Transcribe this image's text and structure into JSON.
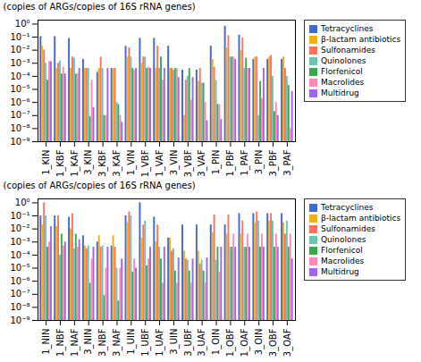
{
  "chart_data": [
    {
      "type": "bar",
      "ylabel": "(copies of ARGs/copies of 16S rRNA genes)",
      "log": "y",
      "ylim": [
        1e-09,
        2.0
      ],
      "yticks": [
        {
          "value": 1e-09,
          "label": "10⁻⁹"
        },
        {
          "value": 1e-08,
          "label": "10⁻⁸"
        },
        {
          "value": 1e-07,
          "label": "10⁻⁷"
        },
        {
          "value": 1e-06,
          "label": "10⁻⁶"
        },
        {
          "value": 1e-05,
          "label": "10⁻⁵"
        },
        {
          "value": 0.0001,
          "label": "10⁻⁴"
        },
        {
          "value": 0.001,
          "label": "10⁻³"
        },
        {
          "value": 0.01,
          "label": "10⁻²"
        },
        {
          "value": 0.1,
          "label": "10⁻¹"
        },
        {
          "value": 1.0,
          "label": "10⁰"
        }
      ],
      "grid": false,
      "legend": "right",
      "categories": [
        "1_KIN",
        "1_KBF",
        "1_KAF",
        "3_KIN",
        "3_KBF",
        "3_KAF",
        "1_VIN",
        "1_VBF",
        "1_VAF",
        "3_VIN",
        "3_VBF",
        "3_VAF",
        "1_PIN",
        "1_PBF",
        "1_PAF",
        "3_PIN",
        "3_PBF",
        "3_PAF"
      ],
      "series": [
        {
          "name": "Tetracyclines",
          "values": [
            0.11,
            0.11,
            0.08,
            0.002,
            0.0002,
            0.0004,
            0.02,
            0.08,
            0.08,
            0.02,
            0.0003,
            0.0003,
            0.02,
            0.7,
            0.14,
            0.002,
            0.002,
            0.002
          ]
        },
        {
          "name": "β-lactam antibiotics",
          "values": [
            0.02,
            0.0004,
            0.0004,
            0.0004,
            0.0004,
            0.0004,
            0.003,
            0.001,
            0.0004,
            0.0004,
            1e-07,
            4e-05,
            0.002,
            0.015,
            0.01,
            0.003,
            0.003,
            0.003
          ]
        },
        {
          "name": "Sulfonamides",
          "values": [
            0.01,
            0.001,
            0.003,
            0.0004,
            0.003,
            0.0004,
            0.015,
            0.003,
            0.02,
            0.0004,
            5e-05,
            0.0004,
            0.0005,
            0.13,
            0.09,
            0.003,
            0.004,
            0.0004
          ]
        },
        {
          "name": "Quinolones",
          "values": [
            0.001,
            0.0015,
            0.0025,
            0.0004,
            0.0004,
            1e-06,
            0.003,
            0.003,
            0.0004,
            0.0003,
            0.0001,
            3e-05,
            5e-05,
            0.003,
            0.0004,
            1e-07,
            0.0001,
            0.0001
          ]
        },
        {
          "name": "Florfenicol",
          "values": [
            5e-05,
            0.00015,
            0.00015,
            8e-08,
            1e-07,
            7e-07,
            0.0004,
            0.0004,
            0.003,
            0.0004,
            0.0004,
            3e-05,
            7e-07,
            0.003,
            0.0025,
            4e-05,
            2e-07,
            2e-05
          ]
        },
        {
          "name": "Macrolides",
          "values": [
            0.0013,
            0.0005,
            0.00015,
            5e-05,
            1e-07,
            1e-07,
            0.0003,
            0.0005,
            5e-05,
            0.0004,
            1.5e-06,
            1e-06,
            7e-07,
            0.003,
            0.0004,
            2e-06,
            1e-06,
            1e-08
          ]
        },
        {
          "name": "Multidrug",
          "values": [
            0.0013,
            0.00015,
            0.0004,
            4e-07,
            0.0004,
            3e-08,
            0.0004,
            0.0004,
            0.0004,
            8e-05,
            8e-05,
            4e-08,
            5e-08,
            0.002,
            0.0004,
            0.0004,
            1e-07,
            7e-06
          ]
        }
      ]
    },
    {
      "type": "bar",
      "ylabel": "(copies of ARGs/copies of 16S rRNA genes)",
      "log": "y",
      "ylim": [
        1e-09,
        2.0
      ],
      "yticks": [
        {
          "value": 1e-09,
          "label": "10⁻⁹"
        },
        {
          "value": 1e-08,
          "label": "10⁻⁸"
        },
        {
          "value": 1e-07,
          "label": "10⁻⁷"
        },
        {
          "value": 1e-06,
          "label": "10⁻⁶"
        },
        {
          "value": 1e-05,
          "label": "10⁻⁵"
        },
        {
          "value": 0.0001,
          "label": "10⁻⁴"
        },
        {
          "value": 0.001,
          "label": "10⁻³"
        },
        {
          "value": 0.01,
          "label": "10⁻²"
        },
        {
          "value": 0.1,
          "label": "10⁻¹"
        },
        {
          "value": 1.0,
          "label": "10⁰"
        }
      ],
      "grid": false,
      "legend": "right",
      "categories": [
        "1_NIN",
        "1_NBF",
        "1_NAF",
        "3_NIN",
        "3_NBF",
        "3_NAF",
        "1_UIN",
        "1_UBF",
        "1_UAF",
        "3_UIN",
        "3_UBF",
        "3_UAF",
        "1_OIN",
        "1_OBF",
        "1_OAF",
        "3_OIN",
        "3_OBF",
        "3_OAF"
      ],
      "series": [
        {
          "name": "Tetracyclines",
          "values": [
            0.1,
            0.1,
            0.08,
            0.003,
            0.001,
            0.0005,
            0.1,
            1.0,
            0.08,
            0.002,
            0.02,
            0.02,
            0.02,
            0.02,
            0.15,
            0.15,
            0.15,
            0.15
          ]
        },
        {
          "name": "β-lactam antibiotics",
          "values": [
            0.02,
            0.015,
            0.01,
            0.0005,
            0.003,
            0.003,
            0.03,
            0.002,
            0.001,
            0.002,
            0.0002,
            0.0002,
            0.005,
            0.004,
            0.004,
            0.03,
            0.04,
            0.03
          ]
        },
        {
          "name": "Sulfonamides",
          "values": [
            1.0,
            0.1,
            0.15,
            0.0003,
            0.0004,
            0.0004,
            0.2,
            0.02,
            0.02,
            0.0002,
            5e-05,
            2e-05,
            0.12,
            0.12,
            0.04,
            0.2,
            0.15,
            0.004
          ]
        },
        {
          "name": "Quinolones",
          "values": [
            0.1,
            0.0001,
            0.0003,
            0.0005,
            0.0005,
            1e-05,
            0.1,
            0.04,
            0.0004,
            0.0003,
            4e-05,
            4e-05,
            4e-05,
            0.0004,
            0.0004,
            0.04,
            0.04,
            0.04
          ]
        },
        {
          "name": "Florfenicol",
          "values": [
            0.0004,
            0.004,
            0.004,
            7e-07,
            8e-08,
            3e-08,
            5e-06,
            1.5e-05,
            5e-05,
            6e-06,
            6e-06,
            6e-06,
            0.0004,
            0.0004,
            0.0004,
            0.0004,
            0.0004,
            0.0004
          ]
        },
        {
          "name": "Macrolides",
          "values": [
            0.001,
            0.0005,
            0.0004,
            5e-05,
            1e-05,
            1e-05,
            5e-05,
            5e-05,
            7e-07,
            7e-07,
            7e-07,
            7e-07,
            5e-06,
            0.004,
            0.004,
            0.004,
            0.004,
            0.004
          ]
        },
        {
          "name": "Multidrug",
          "values": [
            0.015,
            0.001,
            0.0015,
            0.0004,
            0.0004,
            5e-05,
            1e-05,
            0.0004,
            0.0004,
            6e-05,
            5e-05,
            6e-05,
            0.0004,
            0.0004,
            0.0004,
            0.0004,
            0.0004,
            5e-05
          ]
        }
      ]
    }
  ]
}
